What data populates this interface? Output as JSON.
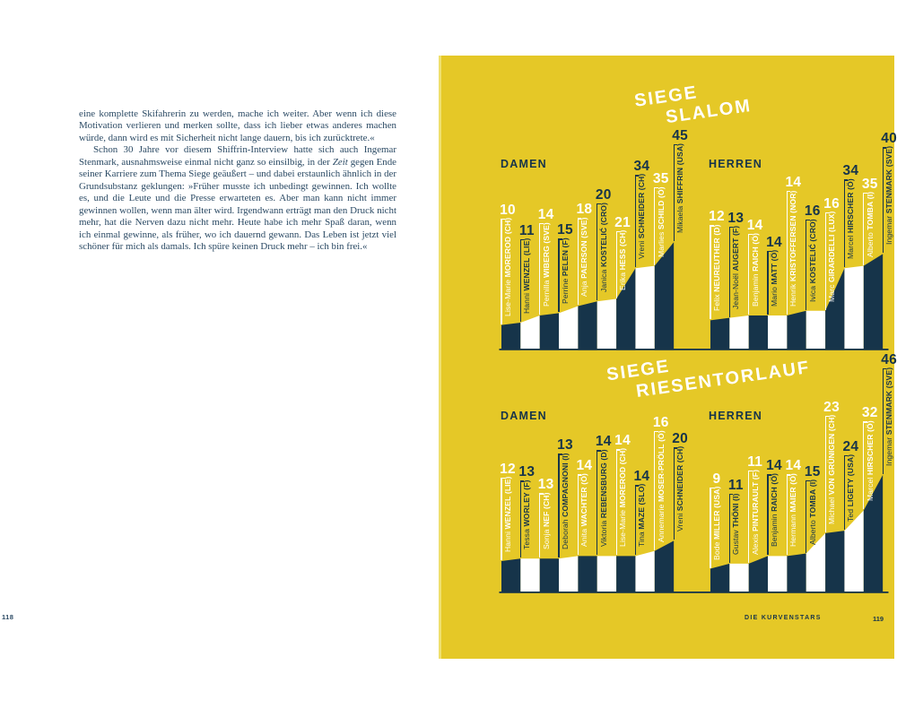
{
  "left_page": {
    "page_number": "118",
    "paragraph1": "eine komplette Skifahrerin zu werden, mache ich weiter. Aber wenn ich diese Motivation verlieren und merken sollte, dass ich lieber etwas anderes machen würde, dann wird es mit Sicherheit nicht lange dauern, bis ich zurücktrete.«",
    "paragraph2_pre_italic": "Schon 30 Jahre vor diesem Shiffrin-Interview hatte sich auch Ingemar Stenmark, ausnahmsweise einmal nicht ganz so einsilbig, in der ",
    "paragraph2_italic": "Zeit",
    "paragraph2_post_italic": " gegen Ende seiner Karriere zum Thema Siege geäußert – und dabei erstaunlich ähnlich in der Grundsubstanz geklungen: »Früher musste ich unbedingt gewinnen. Ich wollte es, und die Leute und die Presse erwarteten es. Aber man kann nicht immer gewinnen wollen, wenn man älter wird. Irgendwann erträgt man den Druck nicht mehr, hat die Nerven dazu nicht mehr. Heute habe ich mehr Spaß daran, wenn ich einmal gewinne, als früher, wo ich dauernd gewann. Das Leben ist jetzt viel schöner für mich als damals. Ich spüre keinen Druck mehr – ich bin frei.«"
  },
  "right_page": {
    "footer": {
      "title": "DIE KURVENSTARS",
      "page_number": "119"
    },
    "colors": {
      "yellow": "#e5c827",
      "navy": "#16344a",
      "white": "#ffffff"
    }
  },
  "chart_data": [
    {
      "type": "area",
      "title": [
        "SIEGE",
        "SLALOM"
      ],
      "unit": "Siege (World-Cup-Siege Slalom)",
      "groups": [
        {
          "label": "DAMEN",
          "athletes": [
            {
              "first": "Lise-Marie",
              "last": "MOREROD",
              "country": "CH",
              "value": 10
            },
            {
              "first": "Hanni",
              "last": "WENZEL",
              "country": "LIE",
              "value": 11
            },
            {
              "first": "Pernilla",
              "last": "WIBERG",
              "country": "SVE",
              "value": 14
            },
            {
              "first": "Perrine",
              "last": "PELEN",
              "country": "F",
              "value": 15
            },
            {
              "first": "Anja",
              "last": "PAERSON",
              "country": "SVE",
              "value": 18
            },
            {
              "first": "Janica",
              "last": "KOSTELIĆ",
              "country": "CRO",
              "value": 20
            },
            {
              "first": "Erika",
              "last": "HESS",
              "country": "CH",
              "value": 21
            },
            {
              "first": "Vreni",
              "last": "SCHNEIDER",
              "country": "CH",
              "value": 34
            },
            {
              "first": "Marlies",
              "last": "SCHILD",
              "country": "Ö",
              "value": 35
            },
            {
              "first": "Mikaela",
              "last": "SHIFFRIN",
              "country": "USA",
              "value": 45
            }
          ]
        },
        {
          "label": "HERREN",
          "athletes": [
            {
              "first": "Felix",
              "last": "NEUREUTHER",
              "country": "D",
              "value": 12
            },
            {
              "first": "Jean-Noël",
              "last": "AUGERT",
              "country": "F",
              "value": 13
            },
            {
              "first": "Benjamin",
              "last": "RAICH",
              "country": "Ö",
              "value": 14
            },
            {
              "first": "Mario",
              "last": "MATT",
              "country": "Ö",
              "value": 14
            },
            {
              "first": "Henrik",
              "last": "KRISTOFFERSEN",
              "country": "NOR",
              "value": 14
            },
            {
              "first": "Ivica",
              "last": "KOSTELIĆ",
              "country": "CRO",
              "value": 16
            },
            {
              "first": "Marc",
              "last": "GIRARDELLI",
              "country": "LUX",
              "value": 16
            },
            {
              "first": "Marcel",
              "last": "HIRSCHER",
              "country": "Ö",
              "value": 34
            },
            {
              "first": "Alberto",
              "last": "TOMBA",
              "country": "I",
              "value": 35
            },
            {
              "first": "Ingemar",
              "last": "STENMARK",
              "country": "SVE",
              "value": 40
            }
          ]
        }
      ]
    },
    {
      "type": "area",
      "title": [
        "SIEGE",
        "RIESENTORLAUF"
      ],
      "unit": "Siege (World-Cup-Siege Riesentorlauf)",
      "groups": [
        {
          "label": "DAMEN",
          "athletes": [
            {
              "first": "Hanni",
              "last": "WENZEL",
              "country": "LIE",
              "value": 12
            },
            {
              "first": "Tessa",
              "last": "WORLEY",
              "country": "F",
              "value": 13
            },
            {
              "first": "Sonja",
              "last": "NEF",
              "country": "CH",
              "value": 13
            },
            {
              "first": "Deborah",
              "last": "COMPAGNONI",
              "country": "I",
              "value": 13
            },
            {
              "first": "Anita",
              "last": "WACHTER",
              "country": "Ö",
              "value": 14
            },
            {
              "first": "Viktoria",
              "last": "REBENSBURG",
              "country": "D",
              "value": 14
            },
            {
              "first": "Lise-Marie",
              "last": "MOREROD",
              "country": "CH",
              "value": 14
            },
            {
              "first": "Tina",
              "last": "MAZE",
              "country": "SLO",
              "value": 14
            },
            {
              "first": "Annemarie",
              "last": "MOSER-PRÖLL",
              "country": "Ö",
              "value": 16
            },
            {
              "first": "Vreni",
              "last": "SCHNEIDER",
              "country": "CH",
              "value": 20
            }
          ]
        },
        {
          "label": "HERREN",
          "athletes": [
            {
              "first": "Bode",
              "last": "MILLER",
              "country": "USA",
              "value": 9
            },
            {
              "first": "Gustav",
              "last": "THÖNI",
              "country": "I",
              "value": 11
            },
            {
              "first": "Alexis",
              "last": "PINTURAULT",
              "country": "F",
              "value": 11
            },
            {
              "first": "Benjamin",
              "last": "RAICH",
              "country": "Ö",
              "value": 14
            },
            {
              "first": "Hermann",
              "last": "MAIER",
              "country": "Ö",
              "value": 14
            },
            {
              "first": "Alberto",
              "last": "TOMBA",
              "country": "I",
              "value": 15
            },
            {
              "first": "Michael",
              "last": "VON GRÜNIGEN",
              "country": "CH",
              "value": 23
            },
            {
              "first": "Ted",
              "last": "LIGETY",
              "country": "USA",
              "value": 24
            },
            {
              "first": "Marcel",
              "last": "HIRSCHER",
              "country": "Ö",
              "value": 32
            },
            {
              "first": "Ingemar",
              "last": "STENMARK",
              "country": "SVE",
              "value": 46
            }
          ]
        }
      ]
    }
  ]
}
